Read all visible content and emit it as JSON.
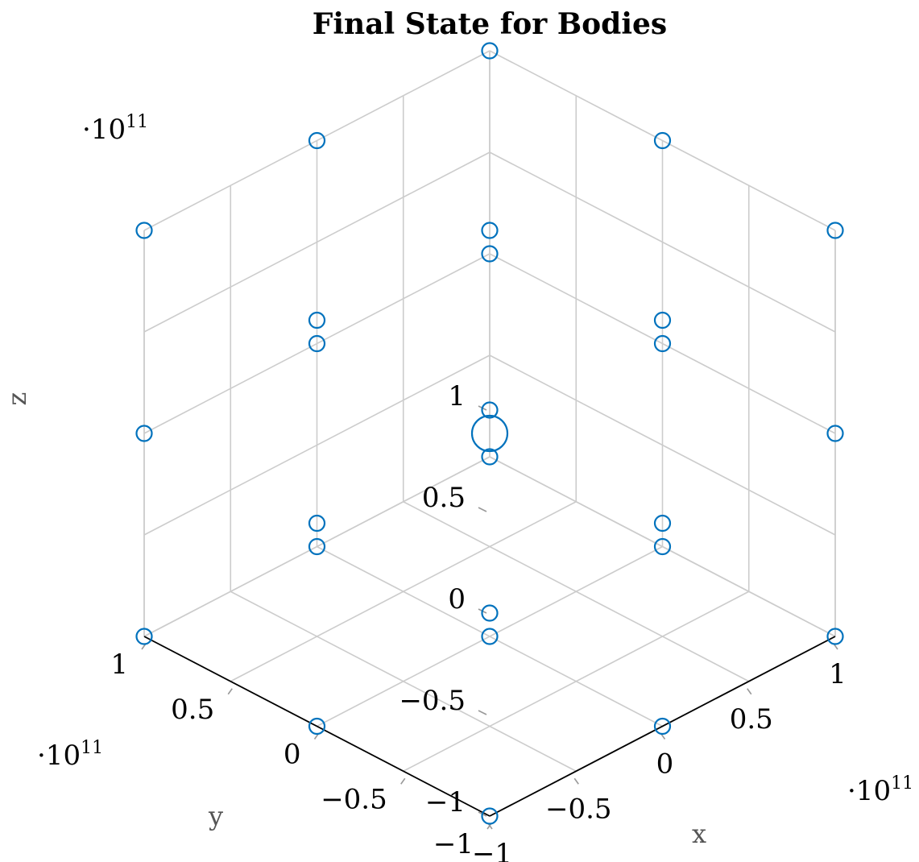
{
  "chart_data": {
    "type": "scatter3d",
    "title": "Final State for Bodies",
    "xlabel": "x",
    "ylabel": "y",
    "zlabel": "z",
    "xlim": [
      -100000000000.0,
      100000000000.0
    ],
    "ylim": [
      -100000000000.0,
      100000000000.0
    ],
    "zlim": [
      -100000000000.0,
      100000000000.0
    ],
    "xticks": [
      -100000000000.0,
      -50000000000.0,
      0,
      50000000000.0,
      100000000000.0
    ],
    "yticks": [
      -100000000000.0,
      -50000000000.0,
      0,
      50000000000.0,
      100000000000.0
    ],
    "zticks": [
      -100000000000.0,
      -50000000000.0,
      0,
      50000000000.0,
      100000000000.0
    ],
    "xtick_labels": [
      "−1",
      "−0.5",
      "0",
      "0.5",
      "1"
    ],
    "ytick_labels": [
      "−1",
      "−0.5",
      "0",
      "0.5",
      "1"
    ],
    "ztick_labels": [
      "−1",
      "−0.5",
      "0",
      "0.5",
      "1"
    ],
    "x_multiplier": "·10",
    "y_multiplier": "·10",
    "z_multiplier": "·10",
    "multiplier_exponent": "11",
    "grid": true,
    "marker": "circle",
    "marker_color": "#0072bd",
    "points": [
      {
        "x": -100000000000.0,
        "y": -100000000000.0,
        "z": -100000000000.0
      },
      {
        "x": 100000000000.0,
        "y": -100000000000.0,
        "z": -100000000000.0
      },
      {
        "x": -100000000000.0,
        "y": 100000000000.0,
        "z": -100000000000.0
      },
      {
        "x": 100000000000.0,
        "y": 100000000000.0,
        "z": -100000000000.0
      },
      {
        "x": -100000000000.0,
        "y": -100000000000.0,
        "z": 100000000000.0
      },
      {
        "x": 100000000000.0,
        "y": -100000000000.0,
        "z": 100000000000.0
      },
      {
        "x": -100000000000.0,
        "y": 100000000000.0,
        "z": 100000000000.0
      },
      {
        "x": 100000000000.0,
        "y": 100000000000.0,
        "z": 100000000000.0
      },
      {
        "x": 0,
        "y": 0,
        "z": -100000000000.0
      },
      {
        "x": 0,
        "y": 0,
        "z": 100000000000.0
      },
      {
        "x": -100000000000.0,
        "y": 0,
        "z": 0
      },
      {
        "x": 100000000000.0,
        "y": 0,
        "z": 0
      },
      {
        "x": 0,
        "y": -100000000000.0,
        "z": 0
      },
      {
        "x": 0,
        "y": 100000000000.0,
        "z": 0
      },
      {
        "x": -100000000000.0,
        "y": -100000000000.0,
        "z": 0
      },
      {
        "x": 100000000000.0,
        "y": -100000000000.0,
        "z": 0
      },
      {
        "x": -100000000000.0,
        "y": 100000000000.0,
        "z": 0
      },
      {
        "x": 100000000000.0,
        "y": 100000000000.0,
        "z": 0
      },
      {
        "x": 0,
        "y": -100000000000.0,
        "z": -100000000000.0
      },
      {
        "x": -100000000000.0,
        "y": 0,
        "z": -100000000000.0
      },
      {
        "x": 100000000000.0,
        "y": 0,
        "z": -100000000000.0
      },
      {
        "x": 0,
        "y": 100000000000.0,
        "z": -100000000000.0
      },
      {
        "x": 0,
        "y": -100000000000.0,
        "z": 100000000000.0
      },
      {
        "x": -100000000000.0,
        "y": 0,
        "z": 100000000000.0
      },
      {
        "x": 100000000000.0,
        "y": 0,
        "z": 100000000000.0
      },
      {
        "x": 0,
        "y": 100000000000.0,
        "z": 100000000000.0
      },
      {
        "x": 0,
        "y": 0,
        "z": 0,
        "large": true
      }
    ]
  }
}
